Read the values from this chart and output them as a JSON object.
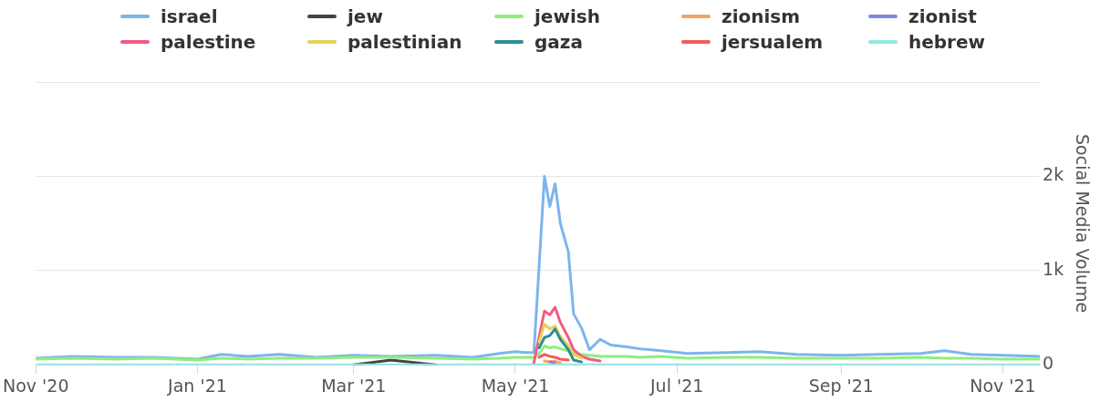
{
  "chart_data": {
    "type": "line",
    "ylabel": "Social Media Volume",
    "legend": "top",
    "grid": "y",
    "marker": "none",
    "line_style": "solid",
    "x": [
      "2020-11-01",
      "2020-11-15",
      "2020-12-01",
      "2020-12-15",
      "2021-01-01",
      "2021-01-10",
      "2021-01-20",
      "2021-02-01",
      "2021-02-15",
      "2021-03-01",
      "2021-03-15",
      "2021-04-01",
      "2021-04-15",
      "2021-04-25",
      "2021-05-01",
      "2021-05-05",
      "2021-05-08",
      "2021-05-10",
      "2021-05-12",
      "2021-05-14",
      "2021-05-16",
      "2021-05-18",
      "2021-05-21",
      "2021-05-23",
      "2021-05-26",
      "2021-05-29",
      "2021-06-02",
      "2021-06-06",
      "2021-06-12",
      "2021-06-17",
      "2021-06-25",
      "2021-07-05",
      "2021-07-20",
      "2021-08-01",
      "2021-08-15",
      "2021-09-01",
      "2021-09-15",
      "2021-10-01",
      "2021-10-10",
      "2021-10-20",
      "2021-11-01",
      "2021-11-15"
    ],
    "xlim": [
      "2020-11-01",
      "2021-11-15"
    ],
    "xticks": [
      {
        "value": "2020-11-01",
        "label": "Nov '20"
      },
      {
        "value": "2021-01-01",
        "label": "Jan '21"
      },
      {
        "value": "2021-03-01",
        "label": "Mar '21"
      },
      {
        "value": "2021-05-01",
        "label": "May '21"
      },
      {
        "value": "2021-07-01",
        "label": "Jul '21"
      },
      {
        "value": "2021-09-01",
        "label": "Sep '21"
      },
      {
        "value": "2021-11-01",
        "label": "Nov '21"
      }
    ],
    "ylim": [
      0,
      3000
    ],
    "yticks": [
      0,
      {
        "value": 1000,
        "label": "1k"
      },
      {
        "value": 2000,
        "label": "2k"
      },
      {
        "value": 3000,
        "label": null
      }
    ],
    "series": [
      {
        "name": "israel",
        "color": "#7cb5ec",
        "values": [
          70,
          90,
          80,
          80,
          60,
          110,
          90,
          110,
          80,
          100,
          90,
          100,
          80,
          120,
          140,
          130,
          130,
          1060,
          2000,
          1680,
          1920,
          1500,
          1200,
          540,
          390,
          160,
          270,
          210,
          190,
          170,
          150,
          120,
          130,
          140,
          110,
          100,
          110,
          120,
          150,
          110,
          100,
          90
        ]
      },
      {
        "name": "jew",
        "color": "#434348",
        "values": [
          null,
          null,
          null,
          null,
          null,
          null,
          null,
          null,
          null,
          0,
          50,
          0,
          null,
          null,
          null,
          null,
          null,
          null,
          null,
          null,
          null,
          null,
          null,
          null,
          null,
          null,
          null,
          null,
          null,
          null,
          null,
          null,
          null,
          null,
          null,
          null,
          null,
          null,
          null,
          null,
          null,
          null
        ]
      },
      {
        "name": "jewish",
        "color": "#90ed7d",
        "values": [
          60,
          70,
          60,
          70,
          50,
          70,
          60,
          70,
          70,
          80,
          80,
          70,
          60,
          70,
          80,
          80,
          80,
          120,
          200,
          180,
          190,
          170,
          150,
          120,
          110,
          100,
          90,
          90,
          90,
          80,
          90,
          70,
          80,
          80,
          70,
          70,
          70,
          80,
          70,
          70,
          60,
          60
        ]
      },
      {
        "name": "zionism",
        "color": "#f7a35c",
        "values": [
          null,
          null,
          null,
          null,
          null,
          null,
          null,
          null,
          null,
          null,
          null,
          null,
          null,
          null,
          null,
          null,
          null,
          null,
          40,
          30,
          40,
          20,
          null,
          null,
          null,
          null,
          null,
          null,
          null,
          null,
          null,
          null,
          null,
          null,
          null,
          null,
          null,
          null,
          null,
          null,
          null,
          null
        ]
      },
      {
        "name": "zionist",
        "color": "#8085e9",
        "values": [
          null,
          null,
          null,
          null,
          null,
          null,
          null,
          null,
          null,
          null,
          null,
          null,
          null,
          null,
          null,
          null,
          null,
          null,
          null,
          30,
          20,
          null,
          null,
          null,
          null,
          null,
          null,
          null,
          null,
          null,
          null,
          null,
          null,
          null,
          null,
          null,
          null,
          null,
          null,
          null,
          null,
          null
        ]
      },
      {
        "name": "palestine",
        "color": "#f15c80",
        "values": [
          null,
          null,
          null,
          null,
          null,
          null,
          null,
          null,
          null,
          null,
          null,
          null,
          null,
          null,
          null,
          null,
          20,
          300,
          570,
          530,
          610,
          450,
          290,
          160,
          90,
          60,
          40,
          null,
          null,
          null,
          null,
          null,
          null,
          null,
          null,
          null,
          null,
          null,
          null,
          null,
          null,
          null
        ]
      },
      {
        "name": "palestinian",
        "color": "#e4d354",
        "values": [
          null,
          null,
          null,
          null,
          null,
          null,
          null,
          null,
          null,
          null,
          null,
          null,
          null,
          null,
          null,
          null,
          null,
          250,
          430,
          380,
          410,
          300,
          200,
          110,
          70,
          null,
          null,
          null,
          null,
          null,
          null,
          null,
          null,
          null,
          null,
          null,
          null,
          null,
          null,
          null,
          null,
          null
        ]
      },
      {
        "name": "gaza",
        "color": "#2b908f",
        "values": [
          null,
          null,
          null,
          null,
          null,
          null,
          null,
          null,
          null,
          null,
          null,
          null,
          null,
          null,
          null,
          null,
          null,
          180,
          290,
          310,
          380,
          270,
          160,
          50,
          30,
          null,
          null,
          null,
          null,
          null,
          null,
          null,
          null,
          null,
          null,
          null,
          null,
          null,
          null,
          null,
          null,
          null
        ]
      },
      {
        "name": "jersualem",
        "color": "#f45b5b",
        "values": [
          null,
          null,
          null,
          null,
          null,
          null,
          null,
          null,
          null,
          null,
          null,
          null,
          null,
          null,
          null,
          null,
          null,
          80,
          110,
          90,
          80,
          60,
          50,
          null,
          null,
          null,
          null,
          null,
          null,
          null,
          null,
          null,
          null,
          null,
          null,
          null,
          null,
          null,
          null,
          null,
          null,
          null
        ]
      },
      {
        "name": "hebrew",
        "color": "#91e8e1",
        "values": [
          0,
          0,
          0,
          0,
          0,
          0,
          0,
          0,
          0,
          0,
          0,
          0,
          0,
          0,
          0,
          0,
          0,
          0,
          0,
          0,
          0,
          0,
          0,
          0,
          0,
          0,
          0,
          0,
          0,
          0,
          0,
          0,
          0,
          0,
          0,
          0,
          0,
          0,
          0,
          0,
          0,
          0
        ]
      }
    ]
  }
}
